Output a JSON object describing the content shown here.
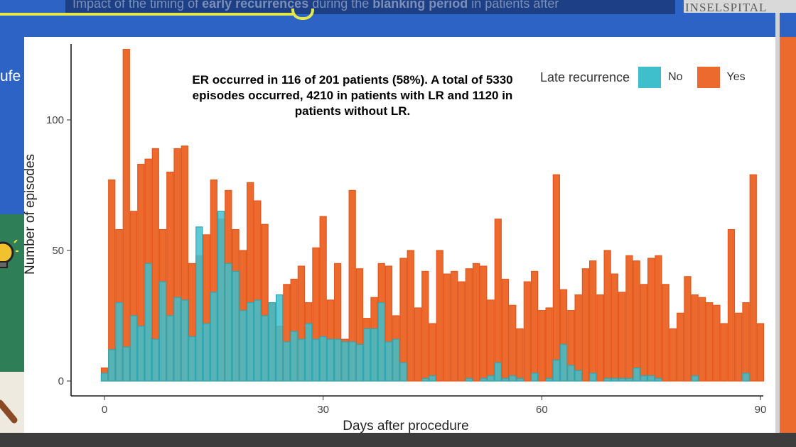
{
  "slide": {
    "title_prefix": "Impact of the timing of ",
    "title_bold1": "early recurrences",
    "title_mid": " during the ",
    "title_bold2": "blanking period",
    "title_suffix": " in patients after",
    "logo_text": "INSELSPITAL",
    "left_partial_text": "ufe",
    "colors": {
      "blue": "#2c63c4",
      "orange": "#ec6a2e",
      "green": "#2e7f58",
      "yellow": "#e3e84a"
    }
  },
  "annotation": "ER occurred in 116 of 201 patients (58%). A total of 5330 episodes occurred, 4210 in patients with LR and 1120 in patients without LR.",
  "chart_data": {
    "type": "bar",
    "stacked": false,
    "xlabel": "Days after procedure",
    "ylabel": "Number of episodes",
    "xlim": [
      -1,
      91
    ],
    "ylim": [
      0,
      128
    ],
    "xticks": [
      0,
      30,
      60,
      90
    ],
    "yticks": [
      0,
      50,
      100
    ],
    "grid": false,
    "legend": {
      "title": "Late recurrence",
      "placement": "top-right"
    },
    "x": [
      0,
      1,
      2,
      3,
      4,
      5,
      6,
      7,
      8,
      9,
      10,
      11,
      12,
      13,
      14,
      15,
      16,
      17,
      18,
      19,
      20,
      21,
      22,
      23,
      24,
      25,
      26,
      27,
      28,
      29,
      30,
      31,
      32,
      33,
      34,
      35,
      36,
      37,
      38,
      39,
      40,
      41,
      42,
      43,
      44,
      45,
      46,
      47,
      48,
      49,
      50,
      51,
      52,
      53,
      54,
      55,
      56,
      57,
      58,
      59,
      60,
      61,
      62,
      63,
      64,
      65,
      66,
      67,
      68,
      69,
      70,
      71,
      72,
      73,
      74,
      75,
      76,
      77,
      78,
      79,
      80,
      81,
      82,
      83,
      84,
      85,
      86,
      87,
      88,
      89,
      90
    ],
    "series": [
      {
        "name": "No",
        "color": "#3fbfcc",
        "values": [
          3,
          12,
          30,
          13,
          25,
          21,
          45,
          16,
          38,
          25,
          32,
          31,
          17,
          59,
          22,
          34,
          65,
          45,
          42,
          27,
          30,
          31,
          25,
          30,
          33,
          15,
          19,
          16,
          22,
          16,
          17,
          16,
          16,
          15,
          15,
          14,
          20,
          20,
          30,
          15,
          16,
          7,
          0,
          0,
          1,
          2,
          0,
          0,
          0,
          0,
          1,
          0,
          1,
          2,
          7,
          1,
          2,
          1,
          0,
          3,
          0,
          1,
          8,
          14,
          6,
          4,
          0,
          3,
          0,
          1,
          1,
          1,
          1,
          5,
          2,
          2,
          1,
          0,
          0,
          0,
          0,
          2,
          0,
          0,
          0,
          0,
          0,
          0,
          3,
          0,
          0
        ]
      },
      {
        "name": "Yes",
        "color": "#ec6a2e",
        "values": [
          5,
          77,
          58,
          127,
          65,
          83,
          85,
          89,
          58,
          80,
          89,
          90,
          45,
          48,
          56,
          77,
          62,
          73,
          58,
          50,
          76,
          69,
          60,
          30,
          21,
          37,
          39,
          44,
          30,
          51,
          63,
          31,
          45,
          16,
          73,
          43,
          24,
          32,
          45,
          44,
          25,
          47,
          50,
          28,
          42,
          22,
          50,
          41,
          42,
          38,
          43,
          45,
          44,
          31,
          62,
          39,
          29,
          20,
          38,
          42,
          27,
          28,
          79,
          35,
          27,
          33,
          43,
          46,
          33,
          50,
          41,
          34,
          48,
          46,
          37,
          47,
          48,
          37,
          20,
          26,
          40,
          33,
          32,
          30,
          29,
          22,
          58,
          26,
          30,
          79,
          22
        ]
      }
    ]
  }
}
